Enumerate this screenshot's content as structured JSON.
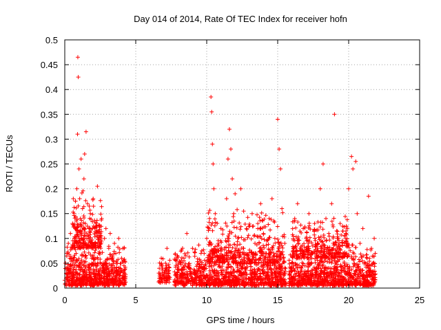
{
  "chart_data": {
    "type": "scatter",
    "title": "Day 014 of 2014, Rate Of TEC Index for receiver hofn",
    "xlabel": "GPS time / hours",
    "ylabel": "ROTI / TECUs",
    "xlim": [
      0,
      25
    ],
    "ylim": [
      0,
      0.5
    ],
    "xticks": [
      "0",
      "5",
      "10",
      "15",
      "20",
      "25"
    ],
    "yticks": [
      "0",
      "0.05",
      "0.1",
      "0.15",
      "0.2",
      "0.25",
      "0.3",
      "0.35",
      "0.4",
      "0.45",
      "0.5"
    ],
    "grid": true,
    "legend": "none",
    "marker": "plus",
    "color": "#ff0000",
    "series": [
      {
        "points": [
          [
            0.05,
            0.05
          ],
          [
            0.1,
            0.03
          ],
          [
            0.15,
            0.07
          ],
          [
            0.2,
            0.02
          ],
          [
            0.25,
            0.09
          ],
          [
            0.3,
            0.04
          ],
          [
            0.35,
            0.06
          ],
          [
            0.4,
            0.11
          ],
          [
            0.45,
            0.03
          ],
          [
            0.5,
            0.08
          ],
          [
            0.55,
            0.13
          ],
          [
            0.6,
            0.18
          ],
          [
            0.6,
            0.06
          ],
          [
            0.65,
            0.15
          ],
          [
            0.7,
            0.1
          ],
          [
            0.75,
            0.12
          ],
          [
            0.8,
            0.07
          ],
          [
            0.85,
            0.2
          ],
          [
            0.9,
            0.31
          ],
          [
            0.92,
            0.465
          ],
          [
            0.95,
            0.425
          ],
          [
            1.0,
            0.24
          ],
          [
            1.05,
            0.18
          ],
          [
            1.1,
            0.14
          ],
          [
            1.15,
            0.26
          ],
          [
            1.2,
            0.11
          ],
          [
            1.25,
            0.16
          ],
          [
            1.3,
            0.09
          ],
          [
            1.35,
            0.22
          ],
          [
            1.4,
            0.27
          ],
          [
            1.45,
            0.13
          ],
          [
            1.5,
            0.315
          ],
          [
            1.55,
            0.1
          ],
          [
            1.6,
            0.17
          ],
          [
            1.65,
            0.08
          ],
          [
            1.7,
            0.12
          ],
          [
            1.8,
            0.15
          ],
          [
            1.9,
            0.06
          ],
          [
            2.0,
            0.18
          ],
          [
            2.1,
            0.09
          ],
          [
            2.2,
            0.13
          ],
          [
            2.3,
            0.205
          ],
          [
            2.4,
            0.07
          ],
          [
            2.5,
            0.11
          ],
          [
            2.6,
            0.14
          ],
          [
            2.7,
            0.05
          ],
          [
            2.8,
            0.1
          ],
          [
            2.9,
            0.12
          ],
          [
            3.0,
            0.04
          ],
          [
            3.1,
            0.08
          ],
          [
            3.2,
            0.11
          ],
          [
            3.3,
            0.06
          ],
          [
            3.4,
            0.03
          ],
          [
            3.5,
            0.09
          ],
          [
            3.6,
            0.07
          ],
          [
            3.7,
            0.05
          ],
          [
            3.8,
            0.1
          ],
          [
            3.9,
            0.04
          ],
          [
            4.0,
            0.06
          ],
          [
            4.1,
            0.08
          ],
          [
            4.2,
            0.03
          ],
          [
            6.7,
            0.03
          ],
          [
            6.8,
            0.06
          ],
          [
            6.9,
            0.04
          ],
          [
            7.0,
            0.02
          ],
          [
            7.1,
            0.05
          ],
          [
            7.2,
            0.08
          ],
          [
            7.3,
            0.03
          ],
          [
            7.9,
            0.02
          ],
          [
            8.0,
            0.05
          ],
          [
            8.2,
            0.03
          ],
          [
            8.4,
            0.06
          ],
          [
            8.6,
            0.11
          ],
          [
            8.8,
            0.04
          ],
          [
            9.0,
            0.08
          ],
          [
            9.2,
            0.03
          ],
          [
            9.4,
            0.05
          ],
          [
            9.6,
            0.07
          ],
          [
            9.8,
            0.04
          ],
          [
            10.0,
            0.1
          ],
          [
            10.2,
            0.14
          ],
          [
            10.3,
            0.385
          ],
          [
            10.35,
            0.355
          ],
          [
            10.4,
            0.29
          ],
          [
            10.45,
            0.25
          ],
          [
            10.5,
            0.2
          ],
          [
            10.6,
            0.15
          ],
          [
            10.8,
            0.09
          ],
          [
            11.0,
            0.12
          ],
          [
            11.2,
            0.06
          ],
          [
            11.4,
            0.18
          ],
          [
            11.5,
            0.26
          ],
          [
            11.6,
            0.32
          ],
          [
            11.7,
            0.28
          ],
          [
            11.8,
            0.22
          ],
          [
            11.9,
            0.15
          ],
          [
            12.0,
            0.19
          ],
          [
            12.2,
            0.1
          ],
          [
            12.4,
            0.2
          ],
          [
            12.6,
            0.08
          ],
          [
            12.8,
            0.12
          ],
          [
            13.0,
            0.05
          ],
          [
            13.2,
            0.15
          ],
          [
            13.4,
            0.09
          ],
          [
            13.6,
            0.13
          ],
          [
            13.8,
            0.17
          ],
          [
            14.0,
            0.11
          ],
          [
            14.2,
            0.07
          ],
          [
            14.4,
            0.14
          ],
          [
            14.6,
            0.18
          ],
          [
            14.8,
            0.1
          ],
          [
            15.0,
            0.34
          ],
          [
            15.1,
            0.28
          ],
          [
            15.2,
            0.24
          ],
          [
            15.3,
            0.16
          ],
          [
            15.4,
            0.06
          ],
          [
            15.5,
            0.09
          ],
          [
            16.0,
            0.05
          ],
          [
            16.2,
            0.14
          ],
          [
            16.4,
            0.17
          ],
          [
            16.6,
            0.08
          ],
          [
            16.8,
            0.12
          ],
          [
            17.0,
            0.1
          ],
          [
            17.2,
            0.15
          ],
          [
            17.4,
            0.06
          ],
          [
            17.6,
            0.13
          ],
          [
            17.8,
            0.09
          ],
          [
            18.0,
            0.2
          ],
          [
            18.2,
            0.25
          ],
          [
            18.4,
            0.14
          ],
          [
            18.6,
            0.11
          ],
          [
            18.8,
            0.17
          ],
          [
            19.0,
            0.35
          ],
          [
            19.2,
            0.1
          ],
          [
            19.4,
            0.13
          ],
          [
            19.6,
            0.07
          ],
          [
            19.8,
            0.11
          ],
          [
            20.0,
            0.2
          ],
          [
            20.2,
            0.265
          ],
          [
            20.3,
            0.24
          ],
          [
            20.5,
            0.255
          ],
          [
            20.6,
            0.15
          ],
          [
            20.8,
            0.09
          ],
          [
            21.0,
            0.12
          ],
          [
            21.2,
            0.05
          ],
          [
            21.4,
            0.185
          ],
          [
            21.6,
            0.08
          ],
          [
            21.8,
            0.1
          ]
        ]
      }
    ],
    "dense_clusters": [
      {
        "x_range": [
          0.0,
          4.3
        ],
        "y_range": [
          0.005,
          0.1
        ],
        "count": 650
      },
      {
        "x_range": [
          0.5,
          2.6
        ],
        "y_range": [
          0.08,
          0.2
        ],
        "count": 220
      },
      {
        "x_range": [
          6.6,
          7.4
        ],
        "y_range": [
          0.01,
          0.07
        ],
        "count": 70
      },
      {
        "x_range": [
          7.7,
          15.6
        ],
        "y_range": [
          0.005,
          0.09
        ],
        "count": 1000
      },
      {
        "x_range": [
          10.0,
          15.5
        ],
        "y_range": [
          0.05,
          0.17
        ],
        "count": 360
      },
      {
        "x_range": [
          15.8,
          21.9
        ],
        "y_range": [
          0.005,
          0.09
        ],
        "count": 850
      },
      {
        "x_range": [
          16.0,
          20.0
        ],
        "y_range": [
          0.06,
          0.15
        ],
        "count": 300
      }
    ]
  }
}
